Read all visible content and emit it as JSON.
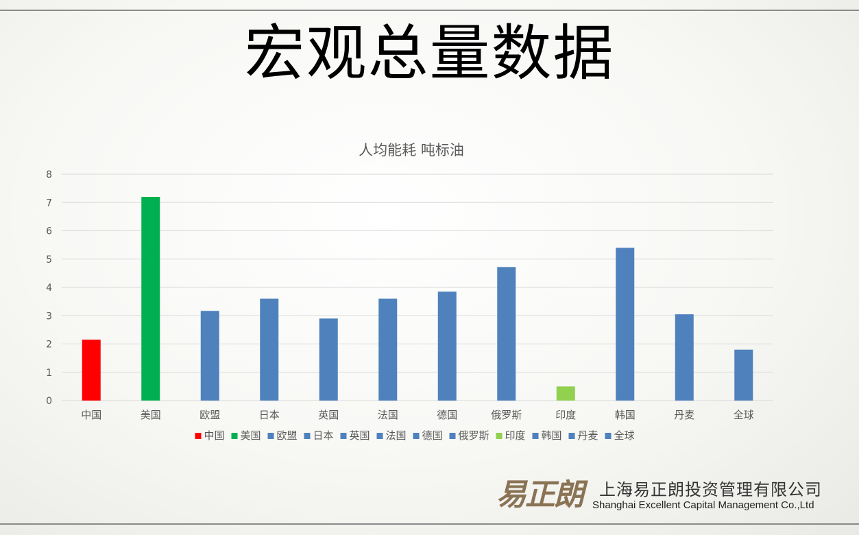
{
  "slide": {
    "title": "宏观总量数据",
    "company_cn": "上海易正朗投资管理有限公司",
    "company_en": "Shanghai Excellent Capital Management Co.,Ltd",
    "logo_text": "易正朗"
  },
  "chart_data": {
    "type": "bar",
    "title": "人均能耗 吨标油",
    "categories": [
      "中国",
      "美国",
      "欧盟",
      "日本",
      "英国",
      "法国",
      "德国",
      "俄罗斯",
      "印度",
      "韩国",
      "丹麦",
      "全球"
    ],
    "values": [
      2.15,
      7.2,
      3.17,
      3.6,
      2.9,
      3.6,
      3.85,
      4.72,
      0.5,
      5.4,
      3.05,
      1.8
    ],
    "colors": [
      "#ff0000",
      "#00b050",
      "#4f81bd",
      "#4f81bd",
      "#4f81bd",
      "#4f81bd",
      "#4f81bd",
      "#4f81bd",
      "#92d050",
      "#4f81bd",
      "#4f81bd",
      "#4f81bd"
    ],
    "ylim": [
      0,
      8
    ],
    "yticks": [
      0,
      1,
      2,
      3,
      4,
      5,
      6,
      7,
      8
    ],
    "grid": true,
    "legend": "bottom",
    "xlabel": "",
    "ylabel": ""
  }
}
